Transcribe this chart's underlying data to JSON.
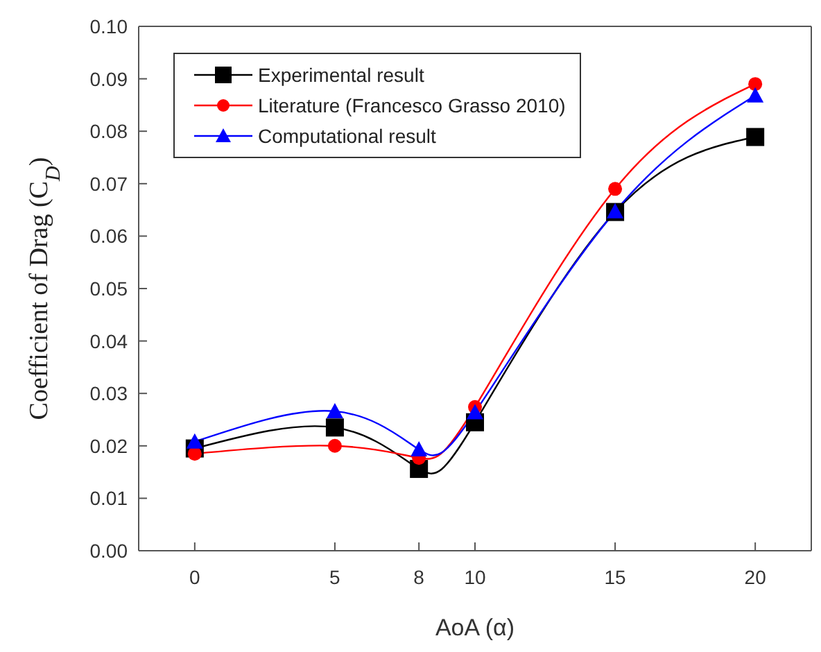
{
  "chart_data": {
    "type": "line",
    "xlabel": "AoA  (α)",
    "ylabel": "Coefficient of Drag (C$_{D}$)",
    "x": [
      0,
      5,
      8,
      10,
      15,
      20
    ],
    "series": [
      {
        "name": "Experimental result",
        "color": "#000000",
        "marker": "square",
        "values": [
          0.0195,
          0.0235,
          0.0156,
          0.0245,
          0.0646,
          0.0789
        ]
      },
      {
        "name": "Literature (Francesco Grasso 2010)",
        "color": "#ff0000",
        "marker": "circle",
        "values": [
          0.0185,
          0.02,
          0.0177,
          0.0274,
          0.069,
          0.089
        ]
      },
      {
        "name": "Computational result",
        "color": "#0000ff",
        "marker": "triangle",
        "values": [
          0.0208,
          0.0266,
          0.0193,
          0.0264,
          0.0647,
          0.0868
        ]
      }
    ],
    "xlim": [
      -2,
      22
    ],
    "xticks": [
      0,
      5,
      8,
      10,
      15,
      20
    ],
    "ylim": [
      0,
      0.1
    ],
    "yticks": [
      {
        "value": 0,
        "label": "0.00"
      },
      {
        "value": 0.01,
        "label": "0.01"
      },
      {
        "value": 0.02,
        "label": "0.02"
      },
      {
        "value": 0.03,
        "label": "0.03"
      },
      {
        "value": 0.04,
        "label": "0.04"
      },
      {
        "value": 0.05,
        "label": "0.05"
      },
      {
        "value": 0.06,
        "label": "0.06"
      },
      {
        "value": 0.07,
        "label": "0.07"
      },
      {
        "value": 0.08,
        "label": "0.08"
      },
      {
        "value": 0.09,
        "label": "0.09"
      },
      {
        "value": 0.1,
        "label": "0.10"
      }
    ],
    "legend": "top left",
    "grid": false
  }
}
